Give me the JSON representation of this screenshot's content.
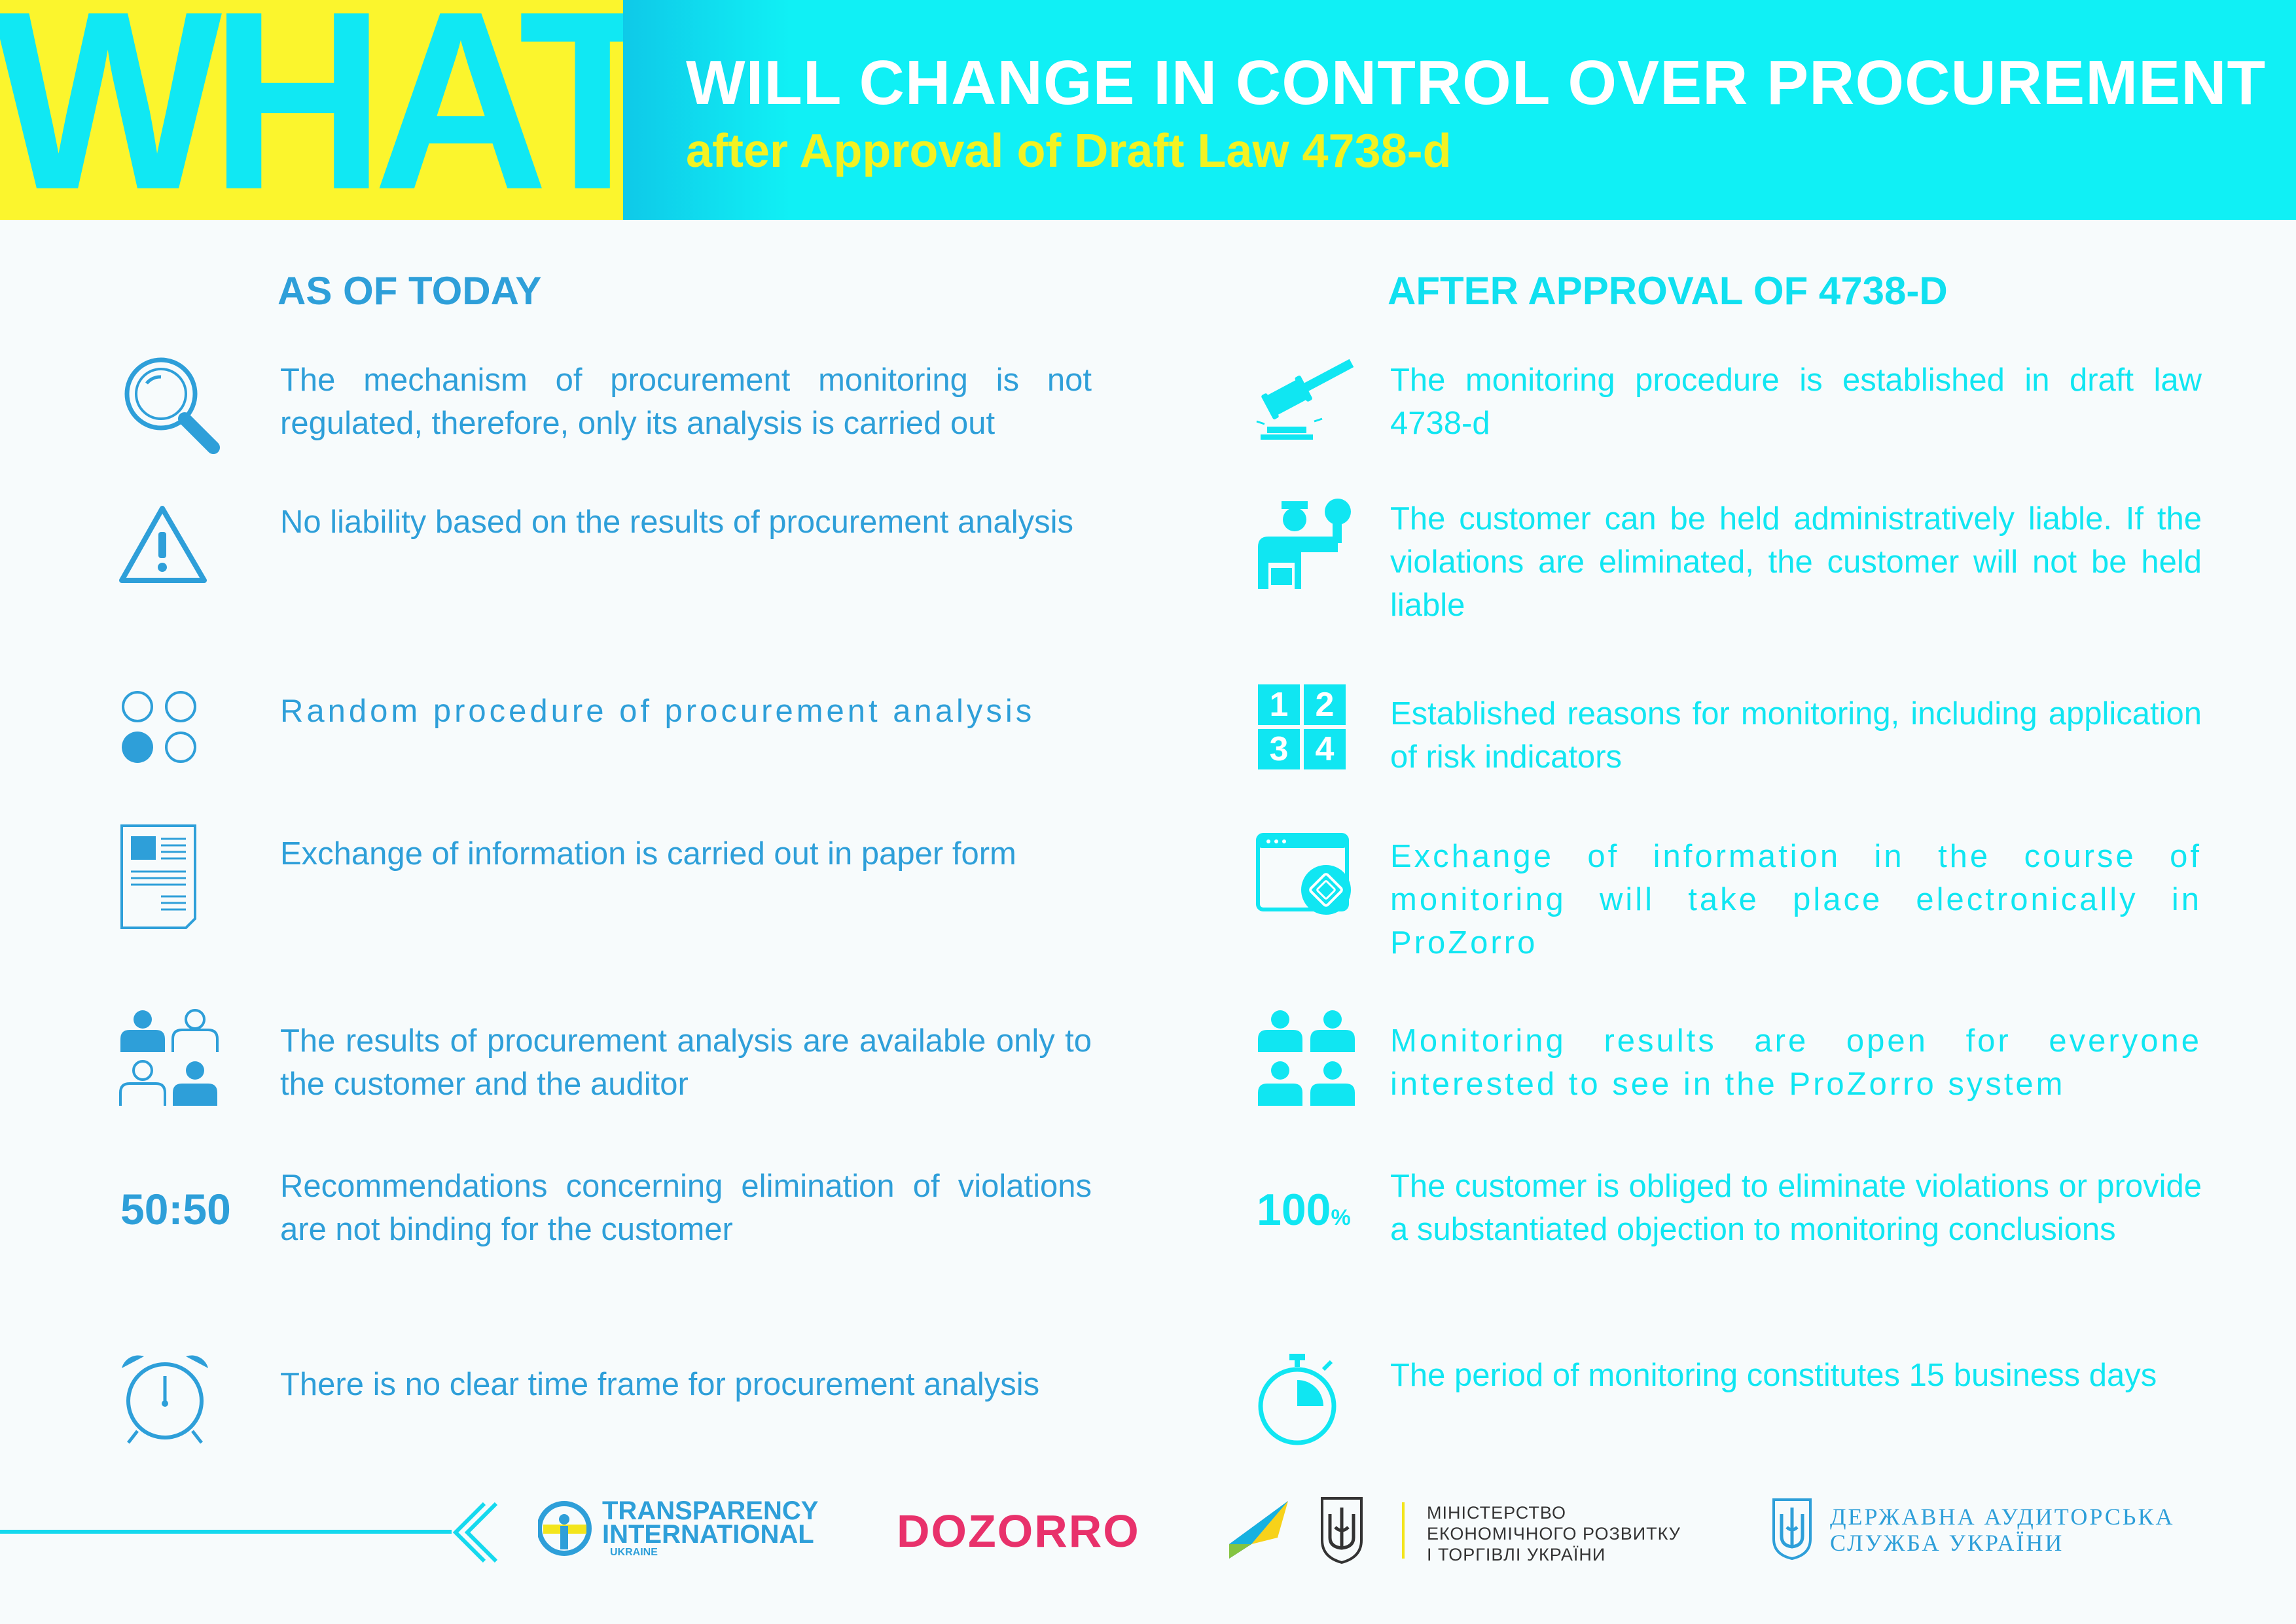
{
  "header": {
    "big_word": "WHAT",
    "title": "WILL CHANGE IN CONTROL OVER PROCUREMENT",
    "subtitle": "after Approval of Draft Law 4738-d"
  },
  "columns": {
    "left_heading": "AS OF TODAY",
    "right_heading": "AFTER APPROVAL OF 4738-D"
  },
  "left_items": [
    {
      "icon": "magnifier-icon",
      "text": "The mechanism of procurement monitoring is not regulated, therefore, only its analysis is carried out"
    },
    {
      "icon": "warning-icon",
      "text": "No liability based on the results of procurement analysis"
    },
    {
      "icon": "circles-icon",
      "text": "Random procedure of procurement analysis"
    },
    {
      "icon": "paper-document-icon",
      "text": "Exchange of information is carried out in paper form"
    },
    {
      "icon": "people-group-icon",
      "text": "The results of procurement analysis are available only to the customer and the auditor"
    },
    {
      "icon": "fifty-fifty-icon",
      "label": "50:50",
      "text": "Recommendations concerning elimination of violations are not binding for the customer"
    },
    {
      "icon": "alarm-clock-icon",
      "text": "There is no clear time frame for procurement analysis"
    }
  ],
  "right_items": [
    {
      "icon": "gavel-icon",
      "text": "The monitoring procedure is established in draft law 4738-d"
    },
    {
      "icon": "official-person-icon",
      "text": "The customer can be held administratively liable. If the violations are eliminated, the customer will not be held liable"
    },
    {
      "icon": "numbers-grid-icon",
      "digits": [
        "1",
        "2",
        "3",
        "4"
      ],
      "text": "Established reasons for monitoring, including application of risk indicators"
    },
    {
      "icon": "browser-window-icon",
      "text": "Exchange of information in the course of monitoring will take place electronically in ProZorro"
    },
    {
      "icon": "people-group-icon",
      "text": "Monitoring results are open for everyone interested to see in the ProZorro system"
    },
    {
      "icon": "hundred-percent-icon",
      "label": "100",
      "label_suffix": "%",
      "text": "The customer is obliged to eliminate violations or provide a substantiated objection to monitoring conclusions"
    },
    {
      "icon": "stopwatch-icon",
      "text": "The period of monitoring constitutes 15 business days"
    }
  ],
  "footer": {
    "ti_line1": "TRANSPARENCY",
    "ti_line2": "INTERNATIONAL",
    "ti_line3": "UKRAINE",
    "dozorro": "DOZORRO",
    "ministry_line1": "МІНІСТЕРСТВО",
    "ministry_line2": "ЕКОНОМІЧНОГО РОЗВИТКУ",
    "ministry_line3": "І ТОРГІВЛІ УКРАЇНИ",
    "audit_line1": "ДЕРЖАВНА АУДИТОРСЬКА",
    "audit_line2": "СЛУЖБА УКРАЇНИ"
  },
  "colors": {
    "yellow": "#fbf52d",
    "cyan": "#10f0f5",
    "blue_text": "#2e9fd9",
    "cyan_text": "#10e6f2",
    "dozorro_pink": "#e8316b"
  }
}
